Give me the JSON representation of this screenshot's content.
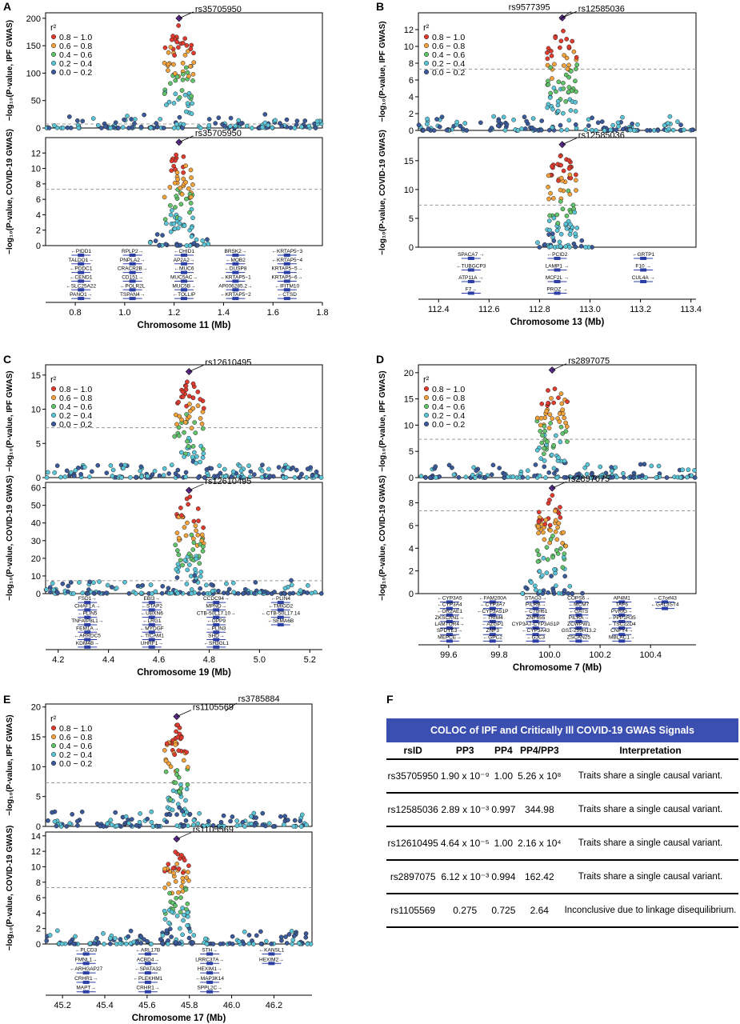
{
  "panel_letters": [
    "A",
    "B",
    "C",
    "D",
    "E",
    "F"
  ],
  "legend": {
    "title": "r²",
    "bins": [
      "0.8 − 1.0",
      "0.6 − 0.8",
      "0.4 − 0.6",
      "0.2 − 0.4",
      "0.0 − 0.2"
    ],
    "colors": [
      "#e03b2e",
      "#f3a33a",
      "#62c46a",
      "#5bc5d8",
      "#3a5a9b"
    ]
  },
  "ylabels": {
    "ipf": "−log₁₀(P-value, IPF GWAS)",
    "covid": "−log₁₀(P-value, COVID-19 GWAS)"
  },
  "chart_data": [
    {
      "type": "scatter",
      "panel": "A",
      "xlabel": "Chromosome 11 (Mb)",
      "xlim": [
        0.68,
        1.8
      ],
      "x_ticks": [
        "0.8",
        "1.0",
        "1.2",
        "1.4",
        "1.6",
        "1.8"
      ],
      "ipf": {
        "ylim": [
          0,
          210
        ],
        "y_ticks": [
          "0",
          "50",
          "100",
          "150",
          "200"
        ],
        "threshold": 7.3,
        "lead": {
          "label": "rs35705950",
          "x": 1.22,
          "y": 200
        }
      },
      "covid": {
        "ylim": [
          0,
          14
        ],
        "y_ticks": [
          "0",
          "2",
          "4",
          "6",
          "8",
          "10",
          "12"
        ],
        "threshold": 7.3,
        "lead": {
          "label": "rs35705950",
          "x": 1.22,
          "y": 13.4
        }
      },
      "genes": [
        "←PIDD1",
        "TALDO1→",
        "←PDDC1",
        "←CEND1",
        "←SLC25A22",
        "PANO1→",
        "RPLP2→",
        "PNPLA2→",
        "CRACR2B→",
        "CD151→",
        "←POLR2L",
        "TSPAN4→",
        "←CHID1",
        "AP2A2→",
        "←MUC6",
        "MUC5AC→",
        "MUC5B→",
        "←TOLLIP",
        "BRSK2→",
        "←MOB2",
        "←DUSP8",
        "←KRTAP5−1",
        "AP006285.2→",
        "←KRTAP5−2",
        "←KRTAP5−3",
        "←KRTAP5−4",
        "KRTAP5−5→",
        "KRTAP5−6→",
        "←IFITM10",
        "←CTSD"
      ]
    },
    {
      "type": "scatter",
      "panel": "B",
      "xlabel": "Chromosome 13 (Mb)",
      "xlim": [
        112.32,
        113.42
      ],
      "x_ticks": [
        "112.4",
        "112.6",
        "112.8",
        "113.0",
        "113.2",
        "113.4"
      ],
      "ipf": {
        "ylim": [
          0,
          14
        ],
        "y_ticks": [
          "0",
          "2",
          "4",
          "6",
          "8",
          "10",
          "12"
        ],
        "threshold": 7.3,
        "lead": {
          "label": "rs12585036",
          "x": 112.89,
          "y": 13.4
        },
        "lead2": {
          "label": "rs9577395",
          "x": 112.88,
          "y": 13.2
        }
      },
      "covid": {
        "ylim": [
          0,
          19
        ],
        "y_ticks": [
          "0",
          "5",
          "10",
          "15"
        ],
        "threshold": 7.3,
        "lead": {
          "label": "rs12585036",
          "x": 112.89,
          "y": 17.8
        }
      },
      "genes": [
        "SPACA7 →",
        "←TUBGCP3",
        "ATP11A →",
        "F7→",
        "←PCID2",
        "LAMP1 →",
        "MCF2L →",
        "PROZ →",
        "←GRTP1",
        "F10 →",
        "CUL4A →"
      ]
    },
    {
      "type": "scatter",
      "panel": "C",
      "xlabel": "Chromosome 19 (Mb)",
      "xlim": [
        4.15,
        5.25
      ],
      "x_ticks": [
        "4.2",
        "4.4",
        "4.6",
        "4.8",
        "5.0",
        "5.2"
      ],
      "ipf": {
        "ylim": [
          0,
          16.5
        ],
        "y_ticks": [
          "0",
          "5",
          "10",
          "15"
        ],
        "threshold": 7.3,
        "lead": {
          "label": "rs12610495",
          "x": 4.72,
          "y": 15.5
        }
      },
      "covid": {
        "ylim": [
          0,
          63
        ],
        "y_ticks": [
          "0",
          "10",
          "20",
          "30",
          "40",
          "50",
          "60"
        ],
        "threshold": 7.3,
        "lead": {
          "label": "rs12610495",
          "x": 4.72,
          "y": 58.5
        }
      },
      "genes": [
        "FSD1→",
        "CHAF1A→",
        "←PLIN5",
        "TNFAIP8L1→",
        "FEM1A→",
        "←ARRDC5",
        "KDM4B→",
        "EBI3→",
        "←STAP2",
        "←UBXN6",
        "←LRG1",
        "←MYDGF",
        "←TICAM1",
        "UHRF1→",
        "CCDC94→",
        "MPND→",
        "CTB-50L17.10→",
        "←DPP9",
        "←PLIN3",
        "SHD→",
        "←SH3GL1",
        "←PLIN4",
        "←TMIGD2",
        "←CTB-50L17.14",
        "←SEMA6B"
      ]
    },
    {
      "type": "scatter",
      "panel": "D",
      "xlabel": "Chromosome 7 (Mb)",
      "xlim": [
        99.48,
        100.58
      ],
      "x_ticks": [
        "99.6",
        "99.8",
        "100.0",
        "100.2",
        "100.4"
      ],
      "ipf": {
        "ylim": [
          0,
          21.5
        ],
        "y_ticks": [
          "0",
          "5",
          "10",
          "15",
          "20"
        ],
        "threshold": 7.3,
        "lead": {
          "label": "rs2897075",
          "x": 100.01,
          "y": 20.5
        }
      },
      "covid": {
        "ylim": [
          0,
          9.8
        ],
        "y_ticks": [
          "0",
          "2",
          "4",
          "6",
          "8"
        ],
        "threshold": 7.3,
        "lead": {
          "label": "rs2897075",
          "x": 100.01,
          "y": 9.3
        }
      },
      "genes": [
        "←CYP3A5",
        "←CYP3A4",
        "←OR2AE1",
        "ZKSCAN1→",
        "LAMTOR4→",
        "SPDYE3→",
        "MEPCE→",
        "←FAM200A",
        "←CYP3A7",
        "←CYP3A51P",
        "←TRIM4",
        "←AZGP1",
        "ZNF3",
        "←GPC2",
        "STAG3→",
        "PILRB→",
        "←C7orf61",
        "ZNF655",
        "CYP3A7-CYP3A51P",
        "←CYP3A43",
        "←GJC3",
        "COPS6→",
        "←MCM7",
        "←GATS",
        "PILRA→",
        "ZCWPW1",
        "GS1-259H13.2",
        "ZSCAN25",
        "AP4M1",
        "TAF6",
        "PVRIG→",
        "←PPP1R35",
        "←TSC22D4",
        "CNPY4→",
        "MBLAC1→",
        "←C7orf43",
        "←GAL3ST4"
      ]
    },
    {
      "type": "scatter",
      "panel": "E",
      "xlabel": "Chromosome 17 (Mb)",
      "xlim": [
        45.12,
        46.38
      ],
      "x_ticks": [
        "45.2",
        "45.4",
        "45.6",
        "45.8",
        "46.0",
        "46.2"
      ],
      "ipf": {
        "ylim": [
          0,
          20.5
        ],
        "y_ticks": [
          "0",
          "5",
          "10",
          "15",
          "20"
        ],
        "threshold": 7.3,
        "lead": {
          "label": "rs1105569",
          "x": 45.74,
          "y": 18.4
        },
        "lead2": {
          "label": "rs3785884",
          "x": 45.97,
          "y": 19.3
        }
      },
      "covid": {
        "ylim": [
          0,
          14.5
        ],
        "y_ticks": [
          "0",
          "2",
          "4",
          "6",
          "8",
          "10",
          "12",
          "14"
        ],
        "threshold": 7.3,
        "lead": {
          "label": "rs1105569",
          "x": 45.74,
          "y": 13.6
        }
      },
      "genes": [
        "←PLCD3",
        "FMNL1→",
        "←ARHGAP27",
        "CRHR1→",
        "MAPT→",
        "←ARL17B",
        "ACBD4→",
        "←SPATA32",
        "←PLEKHM1",
        "CRHR1→",
        "STH→",
        "LRRC37A→",
        "HEXIM1→",
        "←MAP3K14",
        "SPPL2C→",
        "←KANSL1",
        "HEXIM2→"
      ]
    },
    {
      "type": "table",
      "panel": "F",
      "title": "COLOC of IPF and Critically Ill COVID-19 GWAS Signals",
      "columns": [
        "rsID",
        "PP3",
        "PP4",
        "PP4/PP3",
        "Interpretation"
      ],
      "rows": [
        [
          "rs35705950",
          "1.90 x 10⁻⁹",
          "1.00",
          "5.26 x 10⁸",
          "Traits share a single causal variant."
        ],
        [
          "rs12585036",
          "2.89 x 10⁻³",
          "0.997",
          "344.98",
          "Traits share a single causal variant."
        ],
        [
          "rs12610495",
          "4.64 x 10⁻⁵",
          "1.00",
          "2.16 x 10⁴",
          "Traits share a single causal variant."
        ],
        [
          "rs2897075",
          "6.12 x 10⁻³",
          "0.994",
          "162.42",
          "Traits share a single causal variant."
        ],
        [
          "rs1105569",
          "0.275",
          "0.725",
          "2.64",
          "Inconclusive due to linkage disequilibrium."
        ]
      ]
    }
  ]
}
